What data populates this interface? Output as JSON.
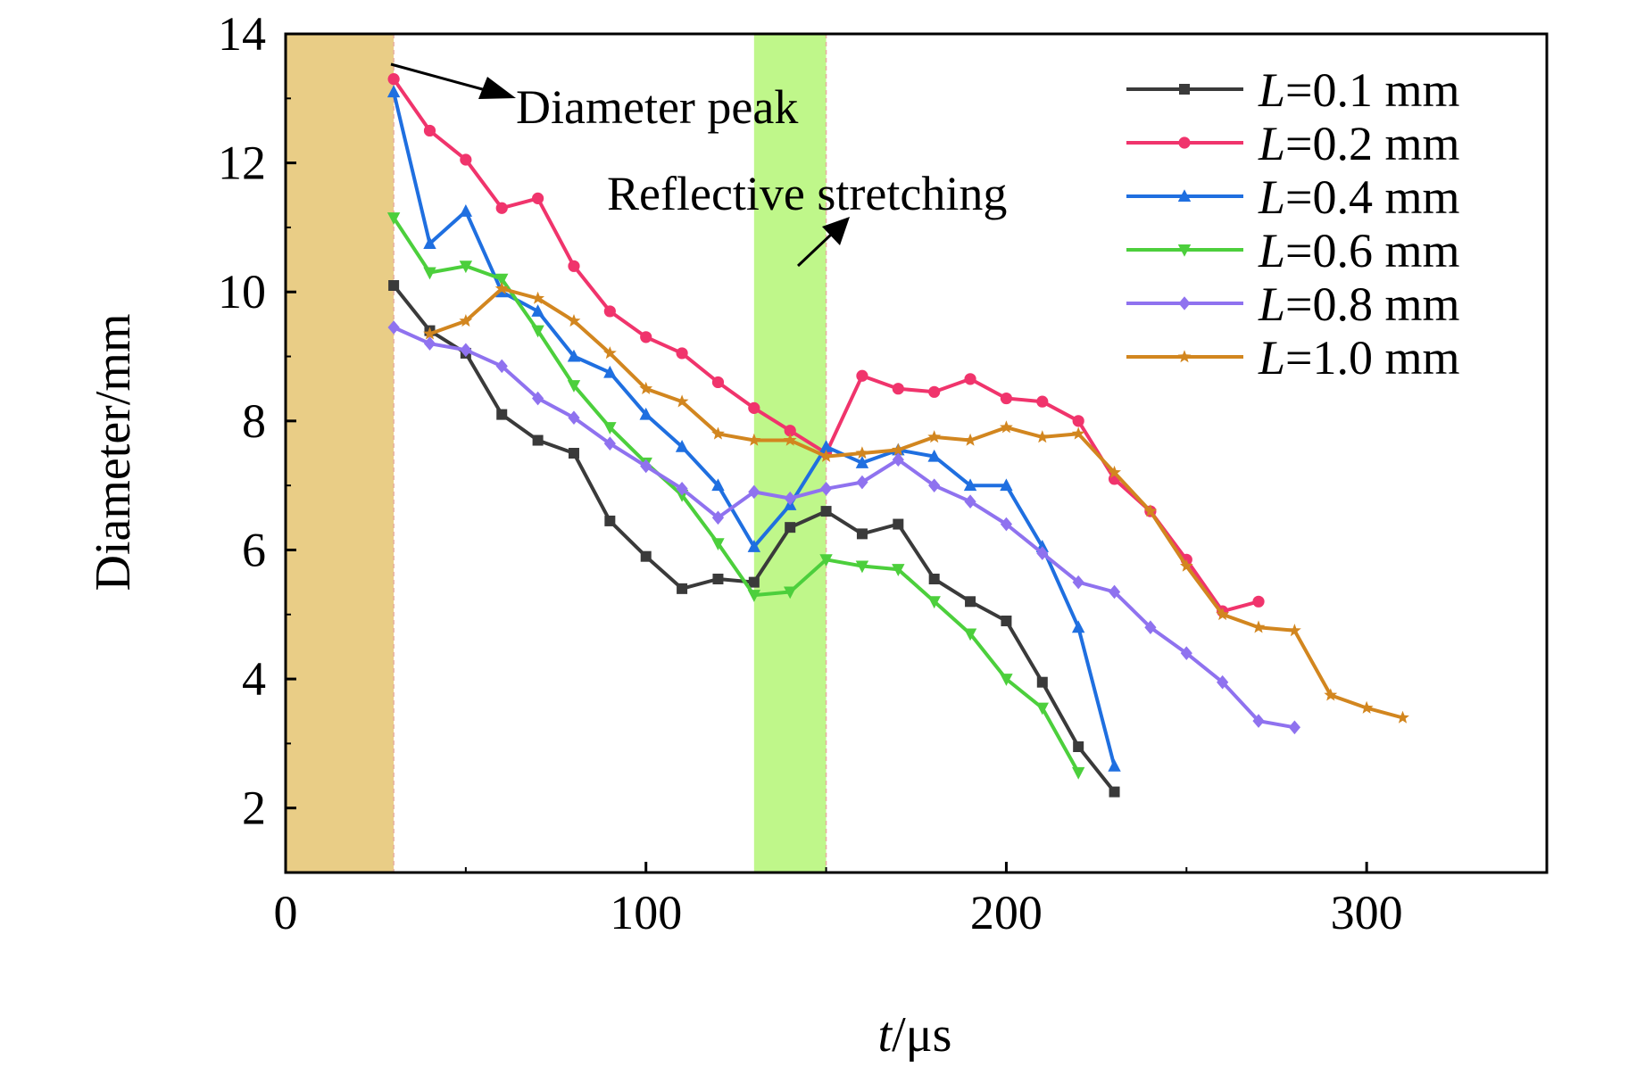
{
  "chart_data": {
    "type": "line",
    "xlabel_var": "t",
    "xlabel_unit": "/μs",
    "ylabel": "Diameter/mm",
    "xlim": [
      0,
      350
    ],
    "ylim": [
      1,
      14
    ],
    "xticks": [
      0,
      100,
      200,
      300
    ],
    "yticks": [
      2,
      4,
      6,
      8,
      10,
      12,
      14
    ],
    "grid": false,
    "legend_position": "top-right",
    "annotations": [
      {
        "text": "Diameter peak"
      },
      {
        "text": "Reflective stretching"
      }
    ],
    "shaded_regions": [
      {
        "x_start": 0,
        "x_end": 30,
        "color": "#e9cd86"
      },
      {
        "x_start": 130,
        "x_end": 150,
        "color": "#bff78a"
      }
    ],
    "series": [
      {
        "name": "L=0.1 mm",
        "legend_var": "L",
        "legend_value": "=0.1 mm",
        "color": "#3a3a3a",
        "marker": "square",
        "x": [
          30,
          40,
          50,
          60,
          70,
          80,
          90,
          100,
          110,
          120,
          130,
          140,
          150,
          160,
          170,
          180,
          190,
          200,
          210,
          220,
          230
        ],
        "values": [
          10.1,
          9.4,
          9.05,
          8.1,
          7.7,
          7.5,
          6.45,
          5.9,
          5.4,
          5.55,
          5.5,
          6.35,
          6.6,
          6.25,
          6.4,
          5.55,
          5.2,
          4.9,
          3.95,
          2.95,
          2.25
        ]
      },
      {
        "name": "L=0.2 mm",
        "legend_var": "L",
        "legend_value": "=0.2 mm",
        "color": "#f0346c",
        "marker": "circle",
        "x": [
          30,
          40,
          50,
          60,
          70,
          80,
          90,
          100,
          110,
          120,
          130,
          140,
          150,
          160,
          170,
          180,
          190,
          200,
          210,
          220,
          230,
          240,
          250,
          260,
          270
        ],
        "values": [
          13.3,
          12.5,
          12.05,
          11.3,
          11.45,
          10.4,
          9.7,
          9.3,
          9.05,
          8.6,
          8.2,
          7.85,
          7.5,
          8.7,
          8.5,
          8.45,
          8.65,
          8.35,
          8.3,
          8.0,
          7.1,
          6.6,
          5.85,
          5.05,
          5.2
        ]
      },
      {
        "name": "L=0.4 mm",
        "legend_var": "L",
        "legend_value": "=0.4 mm",
        "color": "#1f6fe0",
        "marker": "triangle-up",
        "x": [
          30,
          40,
          50,
          60,
          70,
          80,
          90,
          100,
          110,
          120,
          130,
          140,
          150,
          160,
          170,
          180,
          190,
          200,
          210,
          220,
          230
        ],
        "values": [
          13.1,
          10.75,
          11.25,
          10.0,
          9.7,
          9.0,
          8.75,
          8.1,
          7.6,
          7.0,
          6.05,
          6.7,
          7.6,
          7.35,
          7.55,
          7.45,
          7.0,
          7.0,
          6.05,
          4.8,
          2.65
        ]
      },
      {
        "name": "L=0.6 mm",
        "legend_var": "L",
        "legend_value": "=0.6 mm",
        "color": "#4ccf3c",
        "marker": "triangle-down",
        "x": [
          30,
          40,
          50,
          60,
          70,
          80,
          90,
          100,
          110,
          120,
          130,
          140,
          150,
          160,
          170,
          180,
          190,
          200,
          210,
          220
        ],
        "values": [
          11.15,
          10.3,
          10.4,
          10.2,
          9.4,
          8.55,
          7.9,
          7.35,
          6.85,
          6.1,
          5.3,
          5.35,
          5.85,
          5.75,
          5.7,
          5.2,
          4.7,
          4.0,
          3.55,
          2.55
        ]
      },
      {
        "name": "L=0.8 mm",
        "legend_var": "L",
        "legend_value": "=0.8 mm",
        "color": "#8f72ef",
        "marker": "diamond",
        "x": [
          30,
          40,
          50,
          60,
          70,
          80,
          90,
          100,
          110,
          120,
          130,
          140,
          150,
          160,
          170,
          180,
          190,
          200,
          210,
          220,
          230,
          240,
          250,
          260,
          270,
          280
        ],
        "values": [
          9.45,
          9.2,
          9.1,
          8.85,
          8.35,
          8.05,
          7.65,
          7.3,
          6.95,
          6.5,
          6.9,
          6.8,
          6.95,
          7.05,
          7.4,
          7.0,
          6.75,
          6.4,
          5.95,
          5.5,
          5.35,
          4.8,
          4.4,
          3.95,
          3.35,
          3.25
        ]
      },
      {
        "name": "L=1.0 mm",
        "legend_var": "L",
        "legend_value": "=1.0 mm",
        "color": "#d2861f",
        "marker": "star",
        "x": [
          40,
          50,
          60,
          70,
          80,
          90,
          100,
          110,
          120,
          130,
          140,
          150,
          160,
          170,
          180,
          190,
          200,
          210,
          220,
          230,
          240,
          250,
          260,
          270,
          280,
          290,
          300,
          310
        ],
        "values": [
          9.35,
          9.55,
          10.05,
          9.9,
          9.55,
          9.05,
          8.5,
          8.3,
          7.8,
          7.7,
          7.7,
          7.45,
          7.5,
          7.55,
          7.75,
          7.7,
          7.9,
          7.75,
          7.8,
          7.2,
          6.6,
          5.75,
          5.0,
          4.8,
          4.75,
          3.75,
          3.55,
          3.4
        ]
      }
    ]
  }
}
